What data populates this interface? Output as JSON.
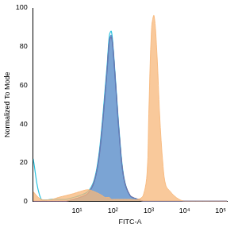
{
  "chart_data": {
    "type": "area",
    "x_label": "FITC-A",
    "y_label": "Normalized To Mode",
    "log": "x",
    "grid": false,
    "x": [
      0.6,
      1,
      2,
      3,
      5,
      8,
      12,
      20,
      30,
      40,
      50,
      60,
      70,
      80,
      90,
      100,
      120,
      150,
      200,
      300,
      500,
      700,
      900,
      1000,
      1200,
      1400,
      1700,
      2000,
      2500,
      3000,
      4000,
      5000,
      7000,
      10000,
      20000,
      50000,
      150000
    ],
    "series": [
      {
        "type": "area",
        "color": "#f7b77a",
        "values": [
          5,
          1,
          1,
          2,
          3,
          4,
          5,
          6,
          5,
          4,
          3,
          2,
          2,
          2,
          1,
          1,
          1,
          1,
          1,
          1,
          1,
          3,
          15,
          45,
          90,
          96,
          75,
          45,
          18,
          8,
          5,
          3,
          1,
          0,
          0,
          0,
          0
        ]
      },
      {
        "type": "area",
        "color": "#4f86c6",
        "values": [
          0,
          0,
          0,
          0,
          0,
          1,
          2,
          4,
          10,
          22,
          38,
          55,
          70,
          84,
          86,
          80,
          60,
          35,
          12,
          3,
          1,
          0,
          0,
          0,
          0,
          0,
          0,
          0,
          0,
          0,
          0,
          0,
          0,
          0,
          0,
          0,
          0
        ]
      },
      {
        "type": "line",
        "color": "#d8405f",
        "values": [
          0,
          0,
          0,
          0,
          0,
          1,
          2,
          4,
          10,
          21,
          37,
          54,
          69,
          83,
          85,
          79,
          59,
          34,
          12,
          3,
          1,
          0,
          0,
          0,
          0,
          0,
          0,
          0,
          0,
          0,
          0,
          0,
          0,
          0,
          0,
          0,
          0
        ]
      },
      {
        "type": "line",
        "color": "#2ec4e0",
        "values": [
          22,
          1,
          1,
          1,
          1,
          2,
          3,
          5,
          11,
          23,
          40,
          57,
          72,
          86,
          88,
          81,
          61,
          36,
          13,
          3,
          1,
          0,
          0,
          0,
          0,
          0,
          0,
          0,
          0,
          0,
          0,
          0,
          0,
          0,
          0,
          0,
          0
        ]
      }
    ],
    "xlim": [
      0.6,
      150000
    ],
    "xticks": [
      {
        "value": 10,
        "label": "10¹"
      },
      {
        "value": 100,
        "label": "10²"
      },
      {
        "value": 1000,
        "label": "10³"
      },
      {
        "value": 10000,
        "label": "10⁴"
      },
      {
        "value": 100000,
        "label": "10⁵"
      }
    ],
    "ylim": [
      0,
      100
    ],
    "yticks": [
      0,
      20,
      40,
      60,
      80,
      100
    ]
  }
}
